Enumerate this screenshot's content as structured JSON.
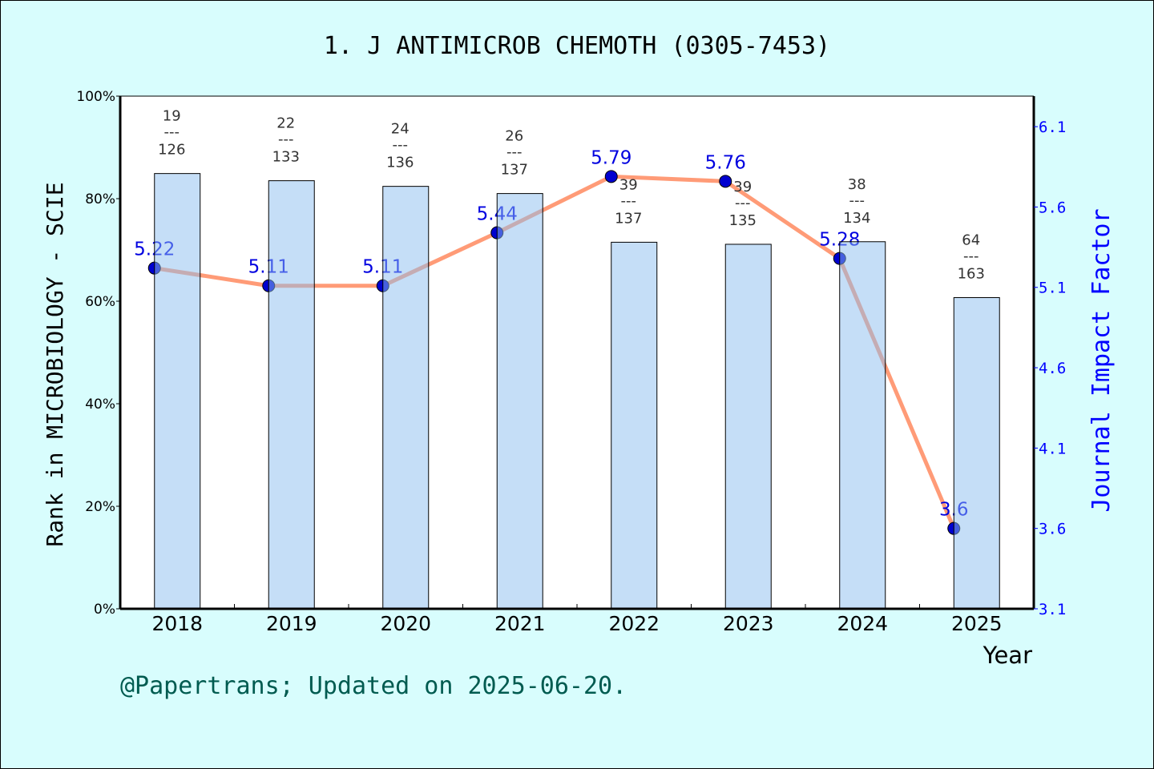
{
  "chart_data": {
    "type": "bar+line",
    "title": "1. J ANTIMICROB CHEMOTH (0305-7453)",
    "xlabel": "Year",
    "ylabel_left": "Rank in MICROBIOLOGY - SCIE",
    "ylabel_right": "Journal Impact Factor",
    "categories": [
      "2018",
      "2019",
      "2020",
      "2021",
      "2022",
      "2023",
      "2024",
      "2025"
    ],
    "rank": [
      19,
      22,
      24,
      26,
      39,
      39,
      38,
      64
    ],
    "total": [
      126,
      133,
      136,
      137,
      137,
      135,
      134,
      163
    ],
    "rank_separator": "---",
    "bar_percent": [
      84.9,
      83.5,
      82.4,
      81.0,
      71.5,
      71.1,
      71.6,
      60.7
    ],
    "impact_factor": [
      5.22,
      5.11,
      5.11,
      5.44,
      5.79,
      5.76,
      5.28,
      3.6
    ],
    "impact_factor_labels": [
      "5.22",
      "5.11",
      "5.11",
      "5.44",
      "5.79",
      "5.76",
      "5.28",
      "3.6"
    ],
    "ylim_left": [
      0,
      100
    ],
    "yticks_left": [
      "0%",
      "20%",
      "40%",
      "60%",
      "80%",
      "100%"
    ],
    "ylim_right": [
      3.1,
      6.29
    ],
    "yticks_right": [
      "3.1",
      "3.6",
      "4.1",
      "4.6",
      "5.1",
      "5.6",
      "6.1"
    ],
    "grid": false,
    "colors": {
      "bar": "#c5dff7",
      "line": "#ff9b77",
      "marker": "#0000d0",
      "if_text": "#0000e0",
      "right_axis": "#0000ff",
      "footer": "#005b50",
      "background": "#d8fdfd"
    }
  },
  "footer": "@Papertrans; Updated on 2025-06-20."
}
